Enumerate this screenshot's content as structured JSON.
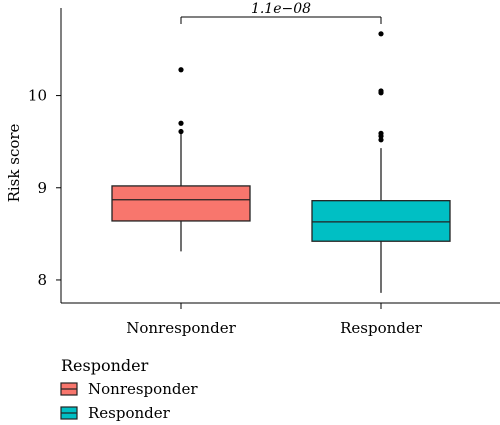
{
  "chart_data": {
    "type": "box",
    "ylabel": "Risk score",
    "ylim": [
      7.75,
      10.95
    ],
    "yticks": [
      8,
      9,
      10
    ],
    "categories": [
      "Nonresponder",
      "Responder"
    ],
    "series": [
      {
        "name": "Nonresponder",
        "color": "#f8766d",
        "q1": 8.64,
        "median": 8.87,
        "q3": 9.02,
        "whisker_low": 8.31,
        "whisker_high": 9.6,
        "outliers": [
          9.61,
          9.7,
          10.28
        ]
      },
      {
        "name": "Responder",
        "color": "#00bfc4",
        "q1": 8.42,
        "median": 8.63,
        "q3": 8.86,
        "whisker_low": 7.86,
        "whisker_high": 9.43,
        "outliers": [
          9.52,
          9.56,
          9.59,
          10.03,
          10.05,
          10.67
        ]
      }
    ],
    "comparison": {
      "label": "1.1e−08",
      "from": 0,
      "to": 1,
      "y": 10.83
    },
    "legend": {
      "title": "Responder",
      "position": "bottom-left"
    }
  }
}
